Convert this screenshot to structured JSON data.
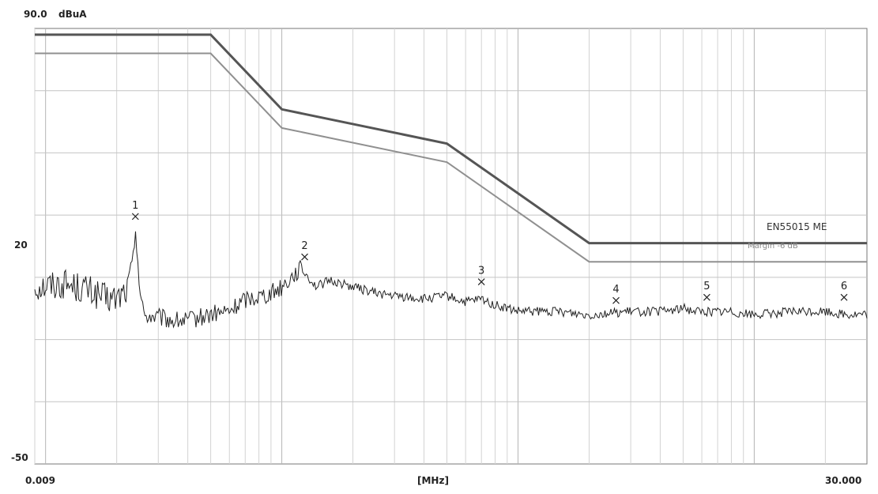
{
  "chart_data": {
    "type": "line",
    "title": "",
    "xlabel": "[MHz]",
    "ylabel": "dBuA",
    "xscale": "log",
    "xlim": [
      0.009,
      30.0
    ],
    "ylim": [
      -50,
      90
    ],
    "x_tick_labels": [
      "0.009",
      "30.000"
    ],
    "y_tick_labels": [
      "90.0",
      "20",
      "-50"
    ],
    "grid": true,
    "series": [
      {
        "name": "EN55015 ME",
        "color": "#555555",
        "x": [
          0.009,
          0.05,
          0.1,
          0.5,
          2.0,
          30.0
        ],
        "y": [
          88,
          88,
          64,
          53,
          21,
          21
        ]
      },
      {
        "name": "Margin -6 dB",
        "color": "#909090",
        "x": [
          0.009,
          0.05,
          0.1,
          0.5,
          2.0,
          30.0
        ],
        "y": [
          82,
          82,
          58,
          47,
          15,
          15
        ]
      },
      {
        "name": "",
        "color": "#222222",
        "style": "noisy-trace",
        "x": [
          0.009,
          0.012,
          0.015,
          0.018,
          0.02,
          0.022,
          0.0235,
          0.024,
          0.0245,
          0.025,
          0.026,
          0.03,
          0.035,
          0.04,
          0.05,
          0.06,
          0.07,
          0.08,
          0.09,
          0.1,
          0.12,
          0.14,
          0.16,
          0.2,
          0.25,
          0.3,
          0.4,
          0.5,
          0.6,
          0.7,
          0.8,
          1.0,
          1.5,
          2.0,
          3.0,
          4.0,
          5.0,
          6.0,
          8.0,
          10.0,
          15.0,
          20.0,
          25.0,
          30.0
        ],
        "y": [
          7,
          8,
          6,
          3,
          3,
          6,
          16,
          26,
          18,
          6,
          -2,
          -3,
          -4,
          -4,
          -2,
          -1,
          3,
          4,
          5,
          7,
          13,
          7,
          9,
          7,
          5,
          4,
          3,
          4,
          2,
          3,
          1,
          -1,
          -1,
          -2,
          -1,
          -1,
          0,
          -1,
          -1,
          -2,
          -1,
          -1,
          -2,
          -2
        ]
      }
    ],
    "markers": [
      {
        "label": "1",
        "x": 0.024,
        "y": 26
      },
      {
        "label": "2",
        "x": 0.125,
        "y": 13
      },
      {
        "label": "3",
        "x": 0.7,
        "y": 5
      },
      {
        "label": "4",
        "x": 2.6,
        "y": -1
      },
      {
        "label": "5",
        "x": 6.3,
        "y": 0
      },
      {
        "label": "6",
        "x": 24.0,
        "y": 0
      }
    ]
  }
}
